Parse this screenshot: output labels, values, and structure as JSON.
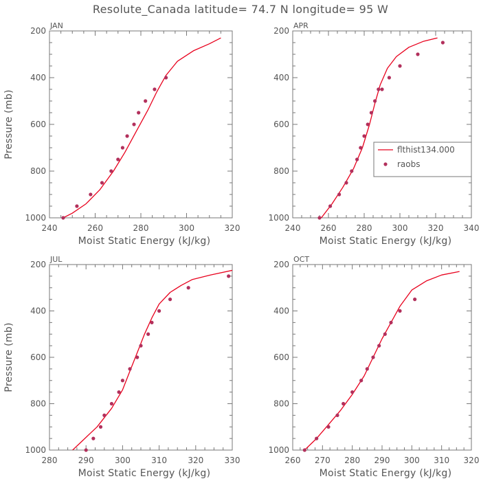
{
  "figure": {
    "title": "Resolute_Canada  latitude= 74.7 N longitude= 95 W"
  },
  "colors": {
    "model_line": "#e8001c",
    "obs_dots": "#b2305c",
    "frame": "#777777",
    "text": "#555555"
  },
  "chart_data": [
    {
      "type": "line",
      "title": "JAN",
      "xlabel": "Moist Static Energy (kJ/kg)",
      "ylabel": "Pressure (mb)",
      "xlim": [
        240,
        320
      ],
      "ylim": [
        1000,
        200
      ],
      "xticks": [
        240,
        260,
        280,
        300,
        320
      ],
      "yticks": [
        200,
        400,
        600,
        800,
        1000
      ],
      "series": [
        {
          "style": "line",
          "x": [
            246,
            250,
            256,
            262,
            268,
            273,
            278,
            283,
            287,
            291,
            296,
            303,
            310,
            315
          ],
          "y": [
            1000,
            980,
            940,
            880,
            800,
            720,
            630,
            540,
            460,
            390,
            330,
            285,
            255,
            230
          ]
        },
        {
          "style": "dots",
          "x": [
            246,
            252,
            258,
            263,
            267,
            270,
            272,
            274,
            277,
            279,
            282,
            286,
            291
          ],
          "y": [
            1000,
            950,
            900,
            850,
            800,
            750,
            700,
            650,
            600,
            550,
            500,
            450,
            400
          ]
        }
      ]
    },
    {
      "type": "line",
      "title": "APR",
      "xlabel": "Moist Static Energy (kJ/kg)",
      "ylabel": "",
      "xlim": [
        240,
        340
      ],
      "ylim": [
        1000,
        200
      ],
      "xticks": [
        240,
        260,
        280,
        300,
        320,
        340
      ],
      "yticks": [
        200,
        400,
        600,
        800,
        1000
      ],
      "legend": {
        "position": "middle-right",
        "entries": [
          {
            "label": "flthist134.000",
            "style": "line"
          },
          {
            "label": "raobs",
            "style": "dots"
          }
        ]
      },
      "series": [
        {
          "style": "line",
          "x": [
            256,
            262,
            268,
            274,
            279,
            283,
            286,
            289,
            293,
            298,
            305,
            313,
            321
          ],
          "y": [
            1000,
            940,
            870,
            790,
            700,
            600,
            510,
            430,
            360,
            310,
            270,
            245,
            230
          ]
        },
        {
          "style": "dots",
          "x": [
            255,
            261,
            266,
            270,
            273,
            276,
            278,
            280,
            282,
            284,
            286,
            288,
            290,
            294,
            300,
            310,
            324
          ],
          "y": [
            1000,
            950,
            900,
            850,
            800,
            750,
            700,
            650,
            600,
            550,
            500,
            450,
            450,
            400,
            350,
            300,
            250
          ]
        }
      ]
    },
    {
      "type": "line",
      "title": "JUL",
      "xlabel": "Moist Static Energy (kJ/kg)",
      "ylabel": "Pressure (mb)",
      "xlim": [
        280,
        330
      ],
      "ylim": [
        1000,
        200
      ],
      "xticks": [
        280,
        290,
        300,
        310,
        320,
        330
      ],
      "yticks": [
        200,
        400,
        600,
        800,
        1000
      ],
      "series": [
        {
          "style": "line",
          "x": [
            286,
            289,
            293,
            297,
            300,
            302,
            304,
            306,
            308,
            310,
            313,
            316,
            319,
            324,
            330
          ],
          "y": [
            1005,
            960,
            900,
            820,
            740,
            660,
            580,
            500,
            430,
            370,
            320,
            290,
            265,
            245,
            225
          ]
        },
        {
          "style": "dots",
          "x": [
            290,
            292,
            294,
            295,
            297,
            299,
            300,
            302,
            304,
            305,
            307,
            308,
            310,
            313,
            318,
            329
          ],
          "y": [
            1000,
            950,
            900,
            850,
            800,
            750,
            700,
            650,
            600,
            550,
            500,
            450,
            400,
            350,
            300,
            250
          ]
        }
      ]
    },
    {
      "type": "line",
      "title": "OCT",
      "xlabel": "Moist Static Energy (kJ/kg)",
      "ylabel": "",
      "xlim": [
        260,
        320
      ],
      "ylim": [
        1000,
        200
      ],
      "xticks": [
        260,
        270,
        280,
        290,
        300,
        310,
        320
      ],
      "yticks": [
        200,
        400,
        600,
        800,
        1000
      ],
      "series": [
        {
          "style": "line",
          "x": [
            264,
            268,
            272,
            276,
            280,
            284,
            287,
            290,
            293,
            296,
            300,
            305,
            310,
            316
          ],
          "y": [
            1000,
            950,
            890,
            830,
            760,
            680,
            600,
            520,
            450,
            380,
            310,
            270,
            245,
            230
          ]
        },
        {
          "style": "dots",
          "x": [
            264,
            268,
            272,
            275,
            277,
            280,
            283,
            285,
            287,
            289,
            291,
            293,
            296,
            301
          ],
          "y": [
            1000,
            950,
            900,
            850,
            800,
            750,
            700,
            650,
            600,
            550,
            500,
            450,
            400,
            350
          ]
        }
      ]
    }
  ]
}
